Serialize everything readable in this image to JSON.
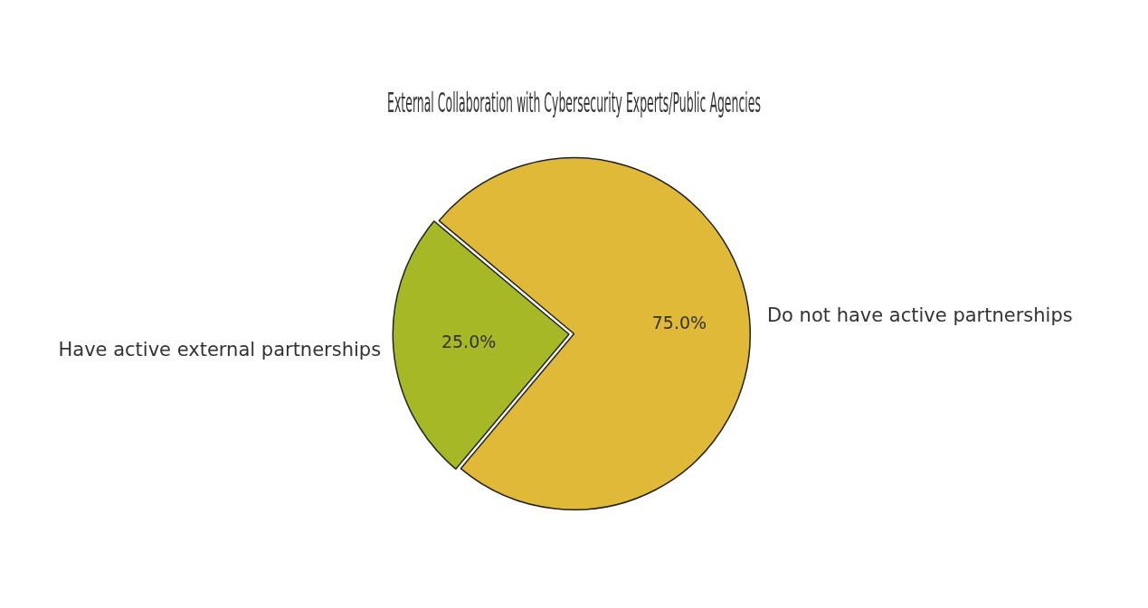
{
  "chart_data": {
    "type": "pie",
    "title": "External Collaboration with Cybersecurity Experts/Public Agencies",
    "categories": [
      "Have active external partnerships",
      "Do not have active partnerships"
    ],
    "values": [
      25,
      75
    ],
    "colors": [
      "#a6b825",
      "#dfb937"
    ],
    "value_labels": [
      "25.0%",
      "75.0%"
    ],
    "legend": false
  }
}
